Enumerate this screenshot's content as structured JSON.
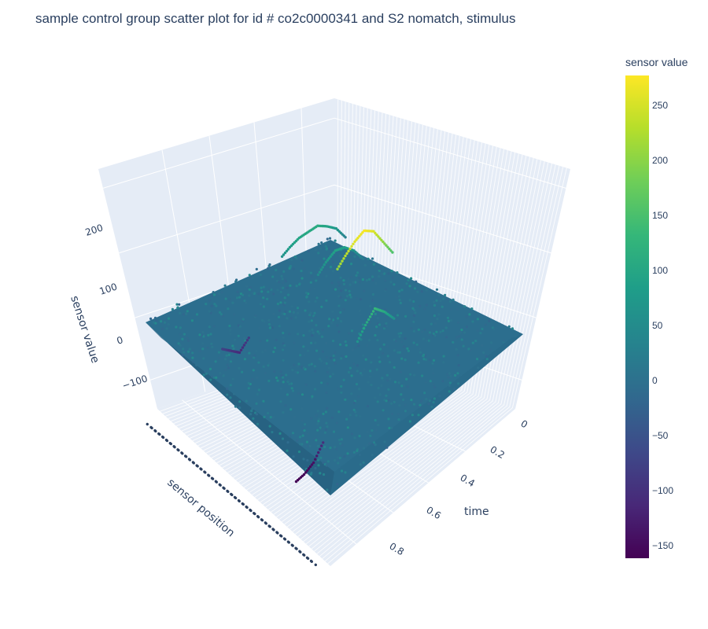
{
  "title": "sample control group scatter plot for id # co2c0000341 and S2 nomatch, stimulus",
  "chart_data": {
    "type": "scatter3d",
    "title": "sample control group scatter plot for id # co2c0000341 and S2 nomatch, stimulus",
    "axes": {
      "x": {
        "label": "time",
        "range": [
          0,
          1
        ],
        "tick_labels": [
          "0",
          "0.2",
          "0.4",
          "0.6",
          "0.8"
        ]
      },
      "y": {
        "label": "sensor position",
        "category_count": 64
      },
      "z": {
        "label": "sensor value",
        "range": [
          -160,
          275
        ],
        "tick_labels": [
          "−100",
          "0",
          "100",
          "200"
        ]
      }
    },
    "colorbar": {
      "title": "sensor value",
      "colorscale": "viridis",
      "range": [
        -160,
        275
      ],
      "tick_labels": [
        "250",
        "200",
        "150",
        "100",
        "50",
        "0",
        "−50",
        "−100",
        "−150"
      ]
    },
    "series": [
      {
        "sensor_index": 5,
        "t": [
          0.0,
          0.05,
          0.1,
          0.15,
          0.2,
          0.25,
          0.3,
          0.35
        ],
        "values": [
          30,
          70,
          90,
          105,
          100,
          95,
          80,
          60
        ]
      },
      {
        "sensor_index": 14,
        "t": [
          0.05,
          0.1,
          0.15,
          0.2,
          0.25,
          0.3
        ],
        "values": [
          20,
          60,
          85,
          90,
          70,
          40
        ]
      },
      {
        "sensor_index": 30,
        "t": [
          0.15,
          0.2,
          0.25,
          0.3,
          0.35,
          0.4,
          0.45
        ],
        "values": [
          150,
          200,
          250,
          270,
          255,
          230,
          200
        ]
      },
      {
        "sensor_index": 40,
        "t": [
          0.3,
          0.35,
          0.4,
          0.45,
          0.5
        ],
        "values": [
          60,
          100,
          130,
          100,
          60
        ]
      },
      {
        "sensor_index": 10,
        "t": [
          0.6,
          0.65,
          0.7,
          0.75
        ],
        "values": [
          -80,
          -110,
          -90,
          -70
        ]
      },
      {
        "sensor_index": 45,
        "t": [
          0.75,
          0.8,
          0.85,
          0.9
        ],
        "values": [
          -100,
          -140,
          -155,
          -160
        ]
      }
    ]
  }
}
